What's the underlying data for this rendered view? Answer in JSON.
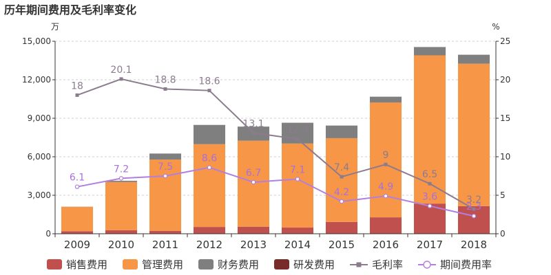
{
  "chart_data": {
    "type": "bar",
    "title": "历年期间费用及毛利率变化",
    "y_unit_left": "万",
    "y_unit_right": "%",
    "categories": [
      "2009",
      "2010",
      "2011",
      "2012",
      "2013",
      "2014",
      "2015",
      "2016",
      "2017",
      "2018"
    ],
    "ylim_left": [
      0,
      15000
    ],
    "yticks_left": [
      "0",
      "3,000",
      "6,000",
      "9,000",
      "12,000",
      "15,000"
    ],
    "ylim_right": [
      0,
      25
    ],
    "yticks_right": [
      "0",
      "5",
      "10",
      "15",
      "20",
      "25"
    ],
    "stacked": true,
    "series": [
      {
        "name": "销售费用",
        "type": "bar",
        "axis": "left",
        "color": "#c0504d",
        "values": [
          200,
          280,
          230,
          530,
          550,
          480,
          920,
          1280,
          2350,
          2150
        ]
      },
      {
        "name": "管理费用",
        "type": "bar",
        "axis": "left",
        "color": "#f79646",
        "values": [
          1900,
          3750,
          5550,
          6450,
          6700,
          6550,
          6530,
          8950,
          11550,
          11100
        ]
      },
      {
        "name": "财务费用",
        "type": "bar",
        "axis": "left",
        "color": "#7f7f7f",
        "values": [
          10,
          100,
          470,
          1500,
          1100,
          1620,
          980,
          450,
          650,
          700
        ]
      },
      {
        "name": "研发费用",
        "type": "bar",
        "axis": "left",
        "color": "#772c2a",
        "values": [
          0,
          0,
          0,
          0,
          0,
          0,
          0,
          0,
          0,
          0
        ]
      },
      {
        "name": "毛利率",
        "type": "line",
        "axis": "right",
        "color": "#8c7b8f",
        "marker": "square",
        "label_color": "#8c7b8f",
        "values": [
          18,
          20.1,
          18.8,
          18.6,
          13.1,
          12.3,
          7.4,
          9,
          6.5,
          3.2
        ],
        "labels": [
          "18",
          "20.1",
          "18.8",
          "18.6",
          "13.1",
          "12.3",
          "7.4",
          "9",
          "6.5",
          "3.2"
        ]
      },
      {
        "name": "期间费用率",
        "type": "line",
        "axis": "right",
        "color": "#b07fe0",
        "marker": "circle",
        "label_color": "#a96fdc",
        "values": [
          6.1,
          7.2,
          7.5,
          8.6,
          6.7,
          7.1,
          4.2,
          4.9,
          3.6,
          2.3
        ],
        "labels": [
          "6.1",
          "7.2",
          "7.5",
          "8.6",
          "6.7",
          "7.1",
          "4.2",
          "4.9",
          "3.6",
          "2.3"
        ]
      }
    ],
    "legend_position": "bottom",
    "grid": "horizontal-dashed"
  }
}
